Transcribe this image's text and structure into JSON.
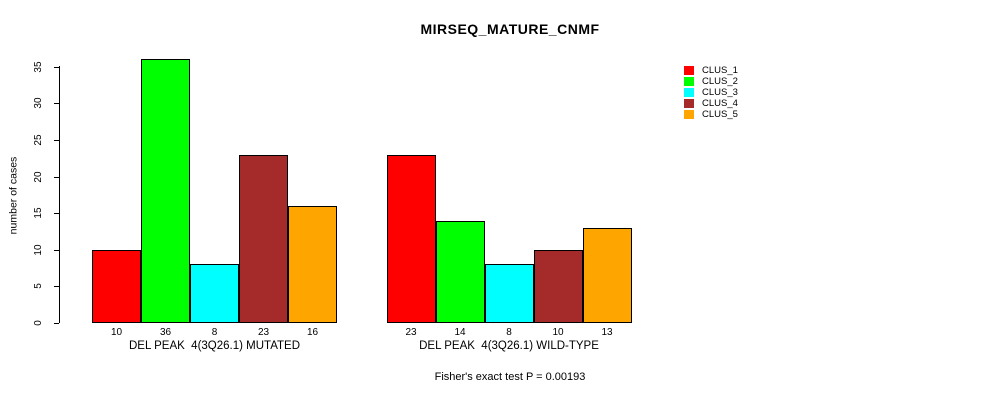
{
  "title": "MIRSEQ_MATURE_CNMF",
  "chart_data": {
    "type": "bar",
    "title": "MIRSEQ_MATURE_CNMF",
    "xlabel": "",
    "ylabel": "number of cases",
    "ylim": [
      0,
      36
    ],
    "yticks": [
      0,
      5,
      10,
      15,
      20,
      25,
      30,
      35
    ],
    "grid": false,
    "legend_position": "top-right-outside",
    "categories": [
      "DEL PEAK  4(3Q26.1) MUTATED",
      "DEL PEAK  4(3Q26.1) WILD-TYPE"
    ],
    "series": [
      {
        "name": "CLUS_1",
        "color": "#FF0000",
        "values": [
          10,
          23
        ]
      },
      {
        "name": "CLUS_2",
        "color": "#00FF00",
        "values": [
          36,
          14
        ]
      },
      {
        "name": "CLUS_3",
        "color": "#00FFFF",
        "values": [
          8,
          8
        ]
      },
      {
        "name": "CLUS_4",
        "color": "#A52A2A",
        "values": [
          23,
          10
        ]
      },
      {
        "name": "CLUS_5",
        "color": "#FFA500",
        "values": [
          16,
          13
        ]
      }
    ],
    "bar_value_labels": [
      [
        10,
        36,
        8,
        23,
        16
      ],
      [
        23,
        14,
        8,
        10,
        13
      ]
    ],
    "annotation": "Fisher's exact test P = 0.00193",
    "bar_border_color": "#000000",
    "background_color": "#FFFFFF"
  }
}
